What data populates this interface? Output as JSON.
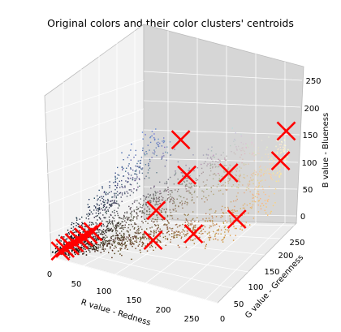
{
  "chart_data": {
    "type": "scatter",
    "projection": "3d",
    "title": "Original colors and their color clusters' centroids",
    "xlabel": "R value - Redness",
    "ylabel": "G value - Greenness",
    "zlabel": "B value - Blueness",
    "xlim": [
      0,
      275
    ],
    "ylim": [
      0,
      275
    ],
    "zlim": [
      0,
      275
    ],
    "x_ticks": [
      0,
      50,
      100,
      150,
      200,
      250
    ],
    "y_ticks": [
      0,
      50,
      100,
      150,
      200,
      250
    ],
    "z_ticks": [
      0,
      50,
      100,
      150,
      200,
      250
    ],
    "grid": true,
    "series": [
      {
        "marker": "point",
        "description_of_points": "pixel colors, each point drawn in its own RGB color",
        "sampled_values": [
          [
            30,
            30,
            30
          ],
          [
            50,
            40,
            35
          ],
          [
            80,
            60,
            40
          ],
          [
            110,
            80,
            50
          ],
          [
            140,
            100,
            60
          ],
          [
            170,
            120,
            70
          ],
          [
            200,
            140,
            70
          ],
          [
            220,
            160,
            90
          ],
          [
            240,
            190,
            120
          ],
          [
            250,
            220,
            170
          ],
          [
            255,
            240,
            200
          ],
          [
            120,
            110,
            110
          ],
          [
            150,
            140,
            140
          ],
          [
            180,
            170,
            170
          ],
          [
            210,
            200,
            200
          ],
          [
            90,
            110,
            160
          ],
          [
            110,
            130,
            190
          ],
          [
            80,
            90,
            130
          ],
          [
            200,
            180,
            150
          ],
          [
            230,
            200,
            160
          ],
          [
            60,
            70,
            90
          ]
        ]
      },
      {
        "marker": "x",
        "color": "#ff0000",
        "description_of_points": "cluster centroids",
        "values": [
          [
            10,
            10,
            10
          ],
          [
            15,
            15,
            15
          ],
          [
            20,
            20,
            20
          ],
          [
            25,
            25,
            25
          ],
          [
            30,
            30,
            30
          ],
          [
            35,
            35,
            35
          ],
          [
            40,
            40,
            40
          ],
          [
            45,
            45,
            45
          ],
          [
            125,
            80,
            45
          ],
          [
            170,
            120,
            60
          ],
          [
            220,
            160,
            90
          ],
          [
            120,
            100,
            90
          ],
          [
            150,
            140,
            150
          ],
          [
            200,
            175,
            160
          ],
          [
            130,
            160,
            200
          ],
          [
            250,
            240,
            180
          ],
          [
            255,
            250,
            230
          ]
        ]
      }
    ]
  }
}
